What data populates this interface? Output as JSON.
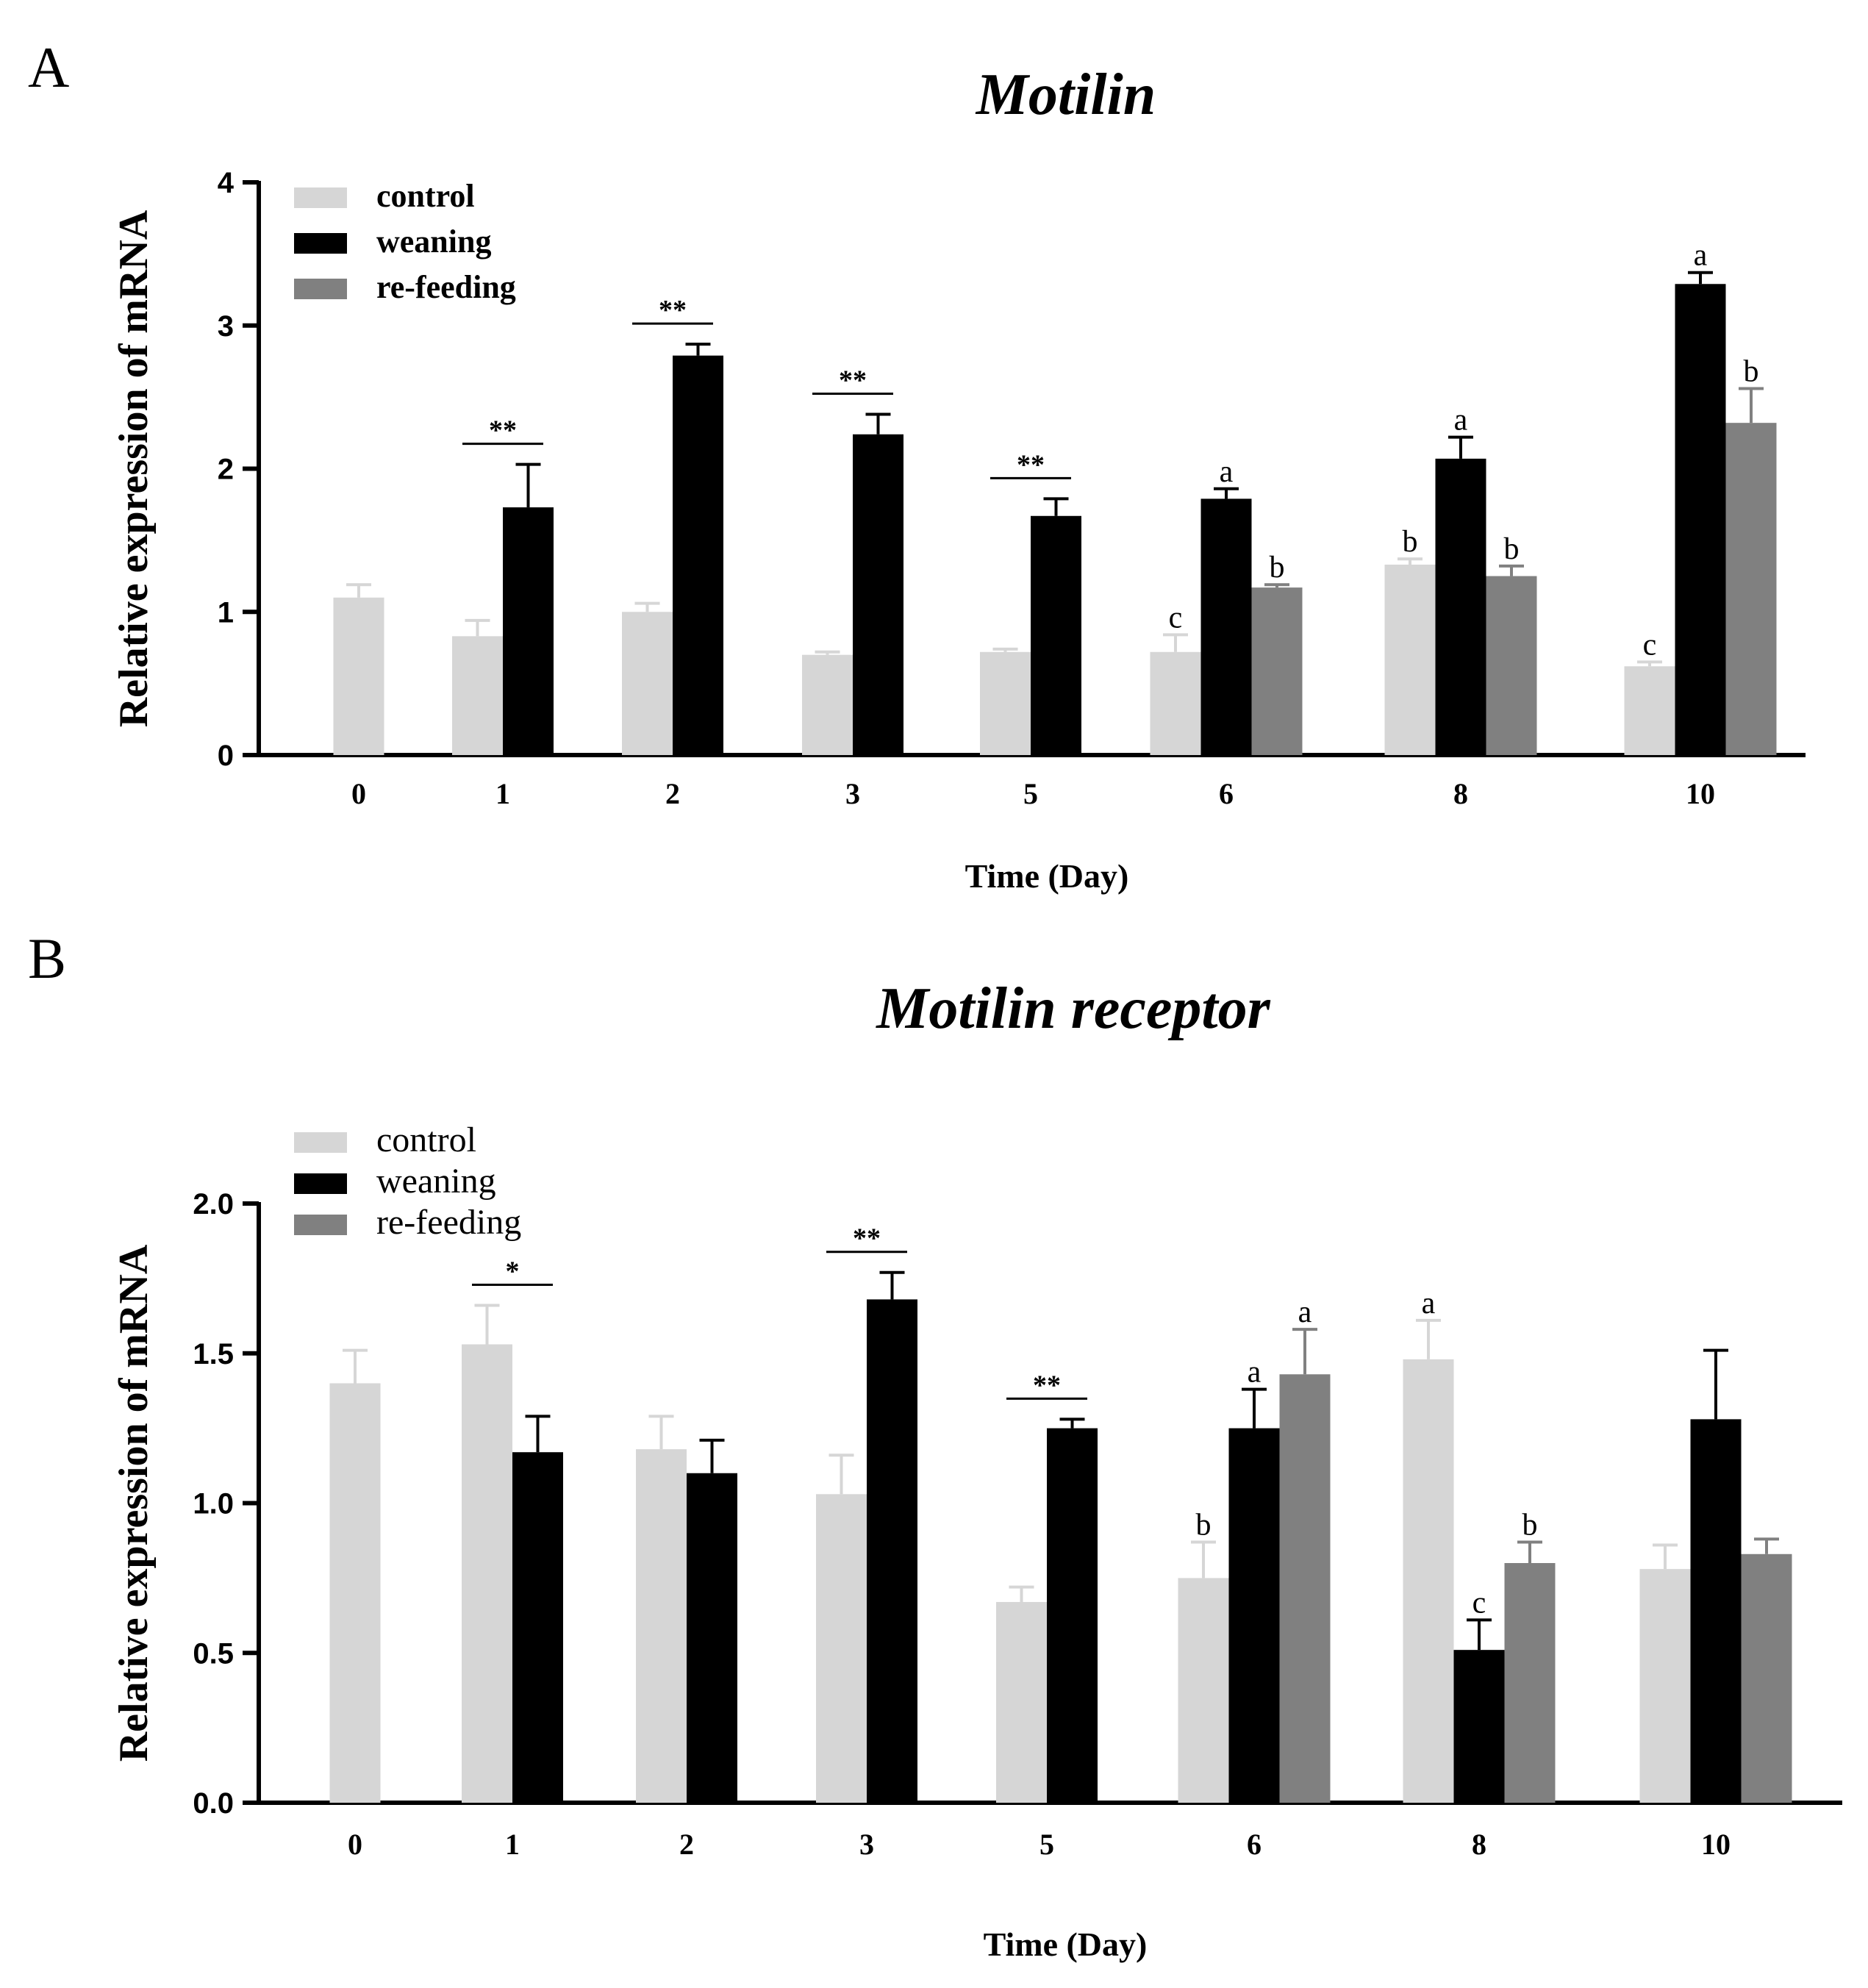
{
  "figure": {
    "panels": [
      "A",
      "B"
    ]
  },
  "colors": {
    "control": "#d6d6d6",
    "weaning": "#000000",
    "refeeding": "#808080",
    "axis": "#000000"
  },
  "chart_data": [
    {
      "panel": "A",
      "type": "bar",
      "title": "Motilin",
      "xlabel": "Time (Day)",
      "ylabel": "Relative expression of  mRNA",
      "ylim": [
        0,
        4
      ],
      "yticks": [
        "0",
        "1",
        "2",
        "3",
        "4"
      ],
      "legend_position": "top-left",
      "categories": [
        "0",
        "1",
        "2",
        "3",
        "5",
        "6",
        "8",
        "10"
      ],
      "series": [
        {
          "name": "control",
          "values": [
            1.1,
            0.83,
            1.0,
            0.7,
            0.72,
            0.72,
            1.33,
            0.62
          ],
          "errors": [
            0.09,
            0.11,
            0.06,
            0.02,
            0.02,
            0.12,
            0.04,
            0.03
          ]
        },
        {
          "name": "weaning",
          "values": [
            null,
            1.73,
            2.79,
            2.24,
            1.67,
            1.79,
            2.07,
            3.29
          ],
          "errors": [
            null,
            0.3,
            0.08,
            0.14,
            0.12,
            0.07,
            0.15,
            0.08
          ]
        },
        {
          "name": "re-feeding",
          "values": [
            null,
            null,
            null,
            null,
            null,
            1.17,
            1.25,
            2.32
          ],
          "errors": [
            null,
            null,
            null,
            null,
            null,
            0.02,
            0.07,
            0.24
          ]
        }
      ],
      "significance": [
        {
          "category": "1",
          "label": "**"
        },
        {
          "category": "2",
          "label": "**"
        },
        {
          "category": "3",
          "label": "**"
        },
        {
          "category": "5",
          "label": "**"
        }
      ],
      "letters": [
        {
          "category": "6",
          "series": "control",
          "label": "c"
        },
        {
          "category": "6",
          "series": "weaning",
          "label": "a"
        },
        {
          "category": "6",
          "series": "re-feeding",
          "label": "b"
        },
        {
          "category": "8",
          "series": "control",
          "label": "b"
        },
        {
          "category": "8",
          "series": "weaning",
          "label": "a"
        },
        {
          "category": "8",
          "series": "re-feeding",
          "label": "b"
        },
        {
          "category": "10",
          "series": "control",
          "label": "c"
        },
        {
          "category": "10",
          "series": "weaning",
          "label": "a"
        },
        {
          "category": "10",
          "series": "re-feeding",
          "label": "b"
        }
      ]
    },
    {
      "panel": "B",
      "type": "bar",
      "title": "Motilin receptor",
      "xlabel": "Time (Day)",
      "ylabel": "Relative expression of  mRNA",
      "ylim": [
        0,
        2
      ],
      "yticks": [
        "0.0",
        "0.5",
        "1.0",
        "1.5",
        "2.0"
      ],
      "legend_position": "top-left",
      "categories": [
        "0",
        "1",
        "2",
        "3",
        "5",
        "6",
        "8",
        "10"
      ],
      "series": [
        {
          "name": "control",
          "values": [
            1.4,
            1.53,
            1.18,
            1.03,
            0.67,
            0.75,
            1.48,
            0.78
          ],
          "errors": [
            0.11,
            0.13,
            0.11,
            0.13,
            0.05,
            0.12,
            0.13,
            0.08
          ]
        },
        {
          "name": "weaning",
          "values": [
            null,
            1.17,
            1.1,
            1.68,
            1.25,
            1.25,
            0.51,
            1.28
          ],
          "errors": [
            null,
            0.12,
            0.11,
            0.09,
            0.03,
            0.13,
            0.1,
            0.23
          ]
        },
        {
          "name": "re-feeding",
          "values": [
            null,
            null,
            null,
            null,
            null,
            1.43,
            0.8,
            0.83
          ],
          "errors": [
            null,
            null,
            null,
            null,
            null,
            0.15,
            0.07,
            0.05
          ]
        }
      ],
      "significance": [
        {
          "category": "1",
          "label": "*"
        },
        {
          "category": "3",
          "label": "**"
        },
        {
          "category": "5",
          "label": "**"
        }
      ],
      "letters": [
        {
          "category": "6",
          "series": "control",
          "label": "b"
        },
        {
          "category": "6",
          "series": "weaning",
          "label": "a"
        },
        {
          "category": "6",
          "series": "re-feeding",
          "label": "a"
        },
        {
          "category": "8",
          "series": "control",
          "label": "a"
        },
        {
          "category": "8",
          "series": "weaning",
          "label": "c"
        },
        {
          "category": "8",
          "series": "re-feeding",
          "label": "b"
        }
      ]
    }
  ]
}
